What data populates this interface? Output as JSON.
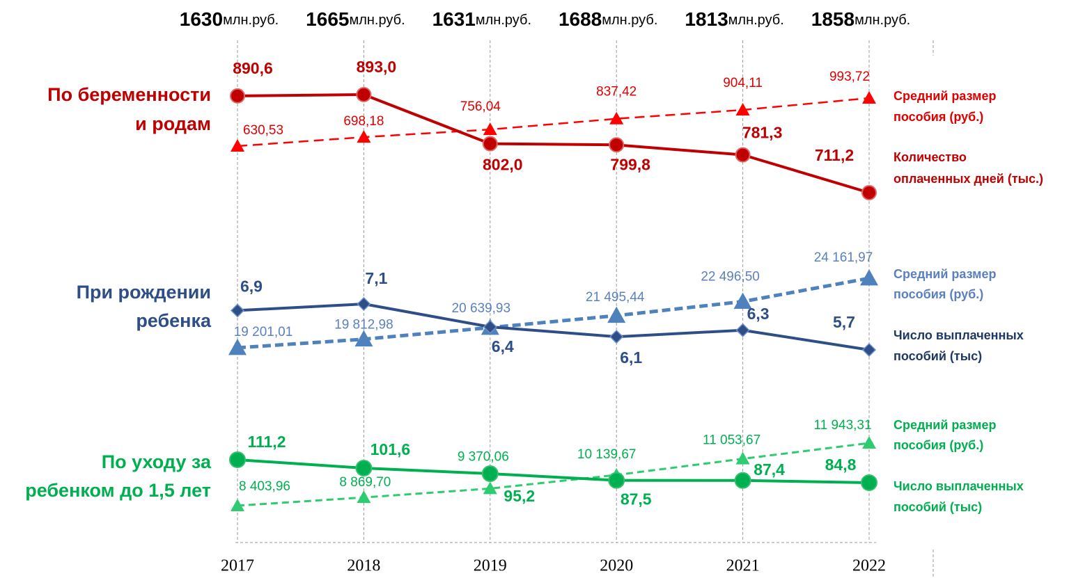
{
  "chart_data": {
    "type": "line",
    "categories": [
      "2017",
      "2018",
      "2019",
      "2020",
      "2021",
      "2022"
    ],
    "totals": [
      1630,
      1665,
      1631,
      1688,
      1813,
      1858
    ],
    "totals_unit": "млн.руб.",
    "groups": [
      {
        "label": [
          "По беременности",
          "и родам"
        ],
        "color": "#c00000",
        "series": [
          {
            "name": [
              "Средний размер",
              "пособия (руб.)"
            ],
            "color": "#ff0000",
            "legend_color": "#e00000",
            "style": "dashed",
            "marker": "triangle",
            "values": [
              630.53,
              698.18,
              756.04,
              837.42,
              904.11,
              993.72
            ],
            "value_labels": [
              "630,53",
              "698,18",
              "756,04",
              "837,42",
              "904,11",
              "993,72"
            ]
          },
          {
            "name": [
              "Количество",
              "оплаченных дней (тыс.)"
            ],
            "color": "#c00000",
            "legend_color": "#c00000",
            "style": "solid",
            "marker": "circle",
            "values": [
              890.6,
              893.0,
              802.0,
              799.8,
              781.3,
              711.2
            ],
            "value_labels": [
              "890,6",
              "893,0",
              "802,0",
              "799,8",
              "781,3",
              "711,2"
            ]
          }
        ]
      },
      {
        "label": [
          "При рождении",
          "ребенка"
        ],
        "color": "#2e4e87",
        "series": [
          {
            "name": [
              "Средний размер",
              "пособия (руб.)"
            ],
            "color": "#4f81bd",
            "legend_color": "#5b80c0",
            "style": "dashed",
            "marker": "triangle",
            "values": [
              19201.01,
              19812.98,
              20639.93,
              21495.44,
              22496.5,
              24161.97
            ],
            "value_labels": [
              "19 201,01",
              "19 812,98",
              "20 639,93",
              "21 495,44",
              "22 496,50",
              "24 161,97"
            ]
          },
          {
            "name": [
              "Число выплаченных",
              "пособий (тыс)"
            ],
            "color": "#2e4e87",
            "legend_color": "#1f3864",
            "style": "solid",
            "marker": "diamond",
            "values": [
              6.9,
              7.1,
              6.4,
              6.1,
              6.3,
              5.7
            ],
            "value_labels": [
              "6,9",
              "7,1",
              "6,4",
              "6,1",
              "6,3",
              "5,7"
            ]
          }
        ]
      },
      {
        "label": [
          "По уходу за",
          "ребенком до 1,5 лет"
        ],
        "color": "#00b050",
        "series": [
          {
            "name": [
              "Средний размер",
              "пособия (руб.)"
            ],
            "color": "#2ecc71",
            "legend_color": "#00b050",
            "style": "dashed",
            "marker": "triangle",
            "values": [
              8403.96,
              8869.7,
              9370.06,
              10139.67,
              11053.67,
              11943.31
            ],
            "value_labels": [
              "8 403,96",
              "8 869,70",
              "9 370,06",
              "10 139,67",
              "11 053,67",
              "11 943,31"
            ]
          },
          {
            "name": [
              "Число выплаченных",
              "пособий (тыс)"
            ],
            "color": "#00b050",
            "legend_color": "#00b050",
            "style": "solid",
            "marker": "circle",
            "values": [
              111.2,
              101.6,
              95.2,
              87.5,
              87.4,
              84.8
            ],
            "value_labels": [
              "111,2",
              "101,6",
              "95,2",
              "87,5",
              "87,4",
              "84,8"
            ]
          }
        ]
      }
    ]
  }
}
